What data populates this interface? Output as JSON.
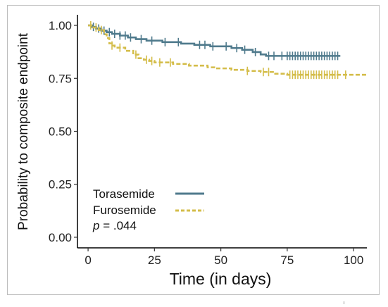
{
  "chart_data": {
    "type": "line",
    "xlabel": "Time (in days)",
    "ylabel": "Probability to composite endpoint",
    "xlim": [
      -4,
      105
    ],
    "ylim": [
      -0.05,
      1.05
    ],
    "x_ticks": [
      0,
      25,
      50,
      75,
      100
    ],
    "x_tick_labels": [
      "0",
      "25",
      "50",
      "75",
      "100"
    ],
    "y_ticks": [
      0,
      0.25,
      0.5,
      0.75,
      1.0
    ],
    "y_tick_labels": [
      "0.00",
      "0.25",
      "0.50",
      "0.75",
      "1.00"
    ],
    "grid": false,
    "legend_placement": "bottom-left",
    "annotation": {
      "p_symbol": "p",
      "p_text": " = .044"
    },
    "series": [
      {
        "name": "Torasemide",
        "color": "#4f7a8c",
        "style": "solid",
        "steps": [
          [
            0,
            1.0
          ],
          [
            1.5,
            0.993
          ],
          [
            3,
            0.985
          ],
          [
            5,
            0.975
          ],
          [
            7,
            0.968
          ],
          [
            9,
            0.96
          ],
          [
            12,
            0.952
          ],
          [
            15,
            0.943
          ],
          [
            18,
            0.935
          ],
          [
            22,
            0.928
          ],
          [
            28,
            0.921
          ],
          [
            35,
            0.914
          ],
          [
            40,
            0.908
          ],
          [
            46,
            0.901
          ],
          [
            54,
            0.893
          ],
          [
            58,
            0.885
          ],
          [
            62,
            0.874
          ],
          [
            65,
            0.863
          ],
          [
            67,
            0.856
          ],
          [
            95,
            0.856
          ]
        ],
        "censor": [
          2,
          4,
          6,
          8,
          10,
          12,
          14,
          16,
          20,
          24,
          29,
          34,
          42,
          44,
          47,
          52,
          56,
          59,
          63,
          68,
          70,
          73,
          75,
          76,
          77,
          78,
          79,
          80,
          81,
          82,
          83,
          84,
          85,
          86,
          87,
          88,
          89,
          90,
          91,
          92,
          93,
          94
        ]
      },
      {
        "name": "Furosemide",
        "color": "#d4bd4a",
        "style": "dashed",
        "steps": [
          [
            0,
            1.0
          ],
          [
            2,
            0.99
          ],
          [
            4,
            0.978
          ],
          [
            6,
            0.958
          ],
          [
            7,
            0.94
          ],
          [
            8,
            0.915
          ],
          [
            9,
            0.905
          ],
          [
            10,
            0.895
          ],
          [
            14,
            0.88
          ],
          [
            17,
            0.862
          ],
          [
            19,
            0.845
          ],
          [
            21,
            0.838
          ],
          [
            23,
            0.832
          ],
          [
            25,
            0.825
          ],
          [
            32,
            0.818
          ],
          [
            38,
            0.81
          ],
          [
            45,
            0.802
          ],
          [
            48,
            0.797
          ],
          [
            54,
            0.79
          ],
          [
            60,
            0.785
          ],
          [
            65,
            0.78
          ],
          [
            70,
            0.772
          ],
          [
            75,
            0.767
          ],
          [
            105,
            0.767
          ]
        ],
        "censor": [
          1,
          3,
          5,
          9,
          12,
          18,
          22,
          24,
          27,
          31,
          60,
          66,
          68,
          76,
          77,
          78,
          79,
          80,
          81,
          82,
          83,
          84,
          85,
          86,
          87,
          88,
          89,
          90,
          91,
          92,
          93,
          94,
          97
        ]
      }
    ]
  }
}
